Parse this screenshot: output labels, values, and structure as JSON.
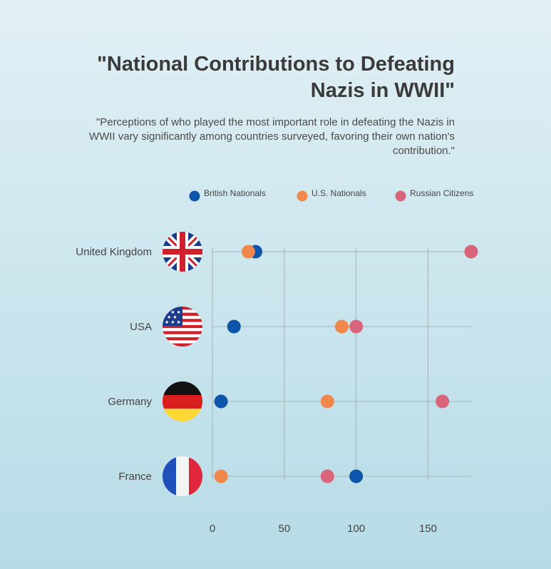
{
  "title": "\"National Contributions to Defeating Nazis in WWII\"",
  "subtitle": "\"Perceptions of who played the most important role in defeating the Nazis in WWII vary significantly among countries surveyed, favoring their own nation's contribution.\"",
  "chart_data": {
    "type": "scatter",
    "categories": [
      "United Kingdom",
      "USA",
      "Germany",
      "France"
    ],
    "category_icons": [
      "uk-flag-icon",
      "usa-flag-icon",
      "germany-flag-icon",
      "france-flag-icon"
    ],
    "x_ticks": [
      0,
      50,
      100,
      150
    ],
    "xlim": [
      0,
      180
    ],
    "grid": true,
    "legend_position": "top",
    "series": [
      {
        "name": "British Nationals",
        "color": "#0d55a8",
        "values": [
          30,
          15,
          6,
          100
        ]
      },
      {
        "name": "U.S. Nationals",
        "color": "#f0874c",
        "values": [
          25,
          90,
          80,
          6
        ]
      },
      {
        "name": "Russian Citizens",
        "color": "#d9657a",
        "values": [
          180,
          100,
          160,
          80
        ]
      }
    ]
  }
}
